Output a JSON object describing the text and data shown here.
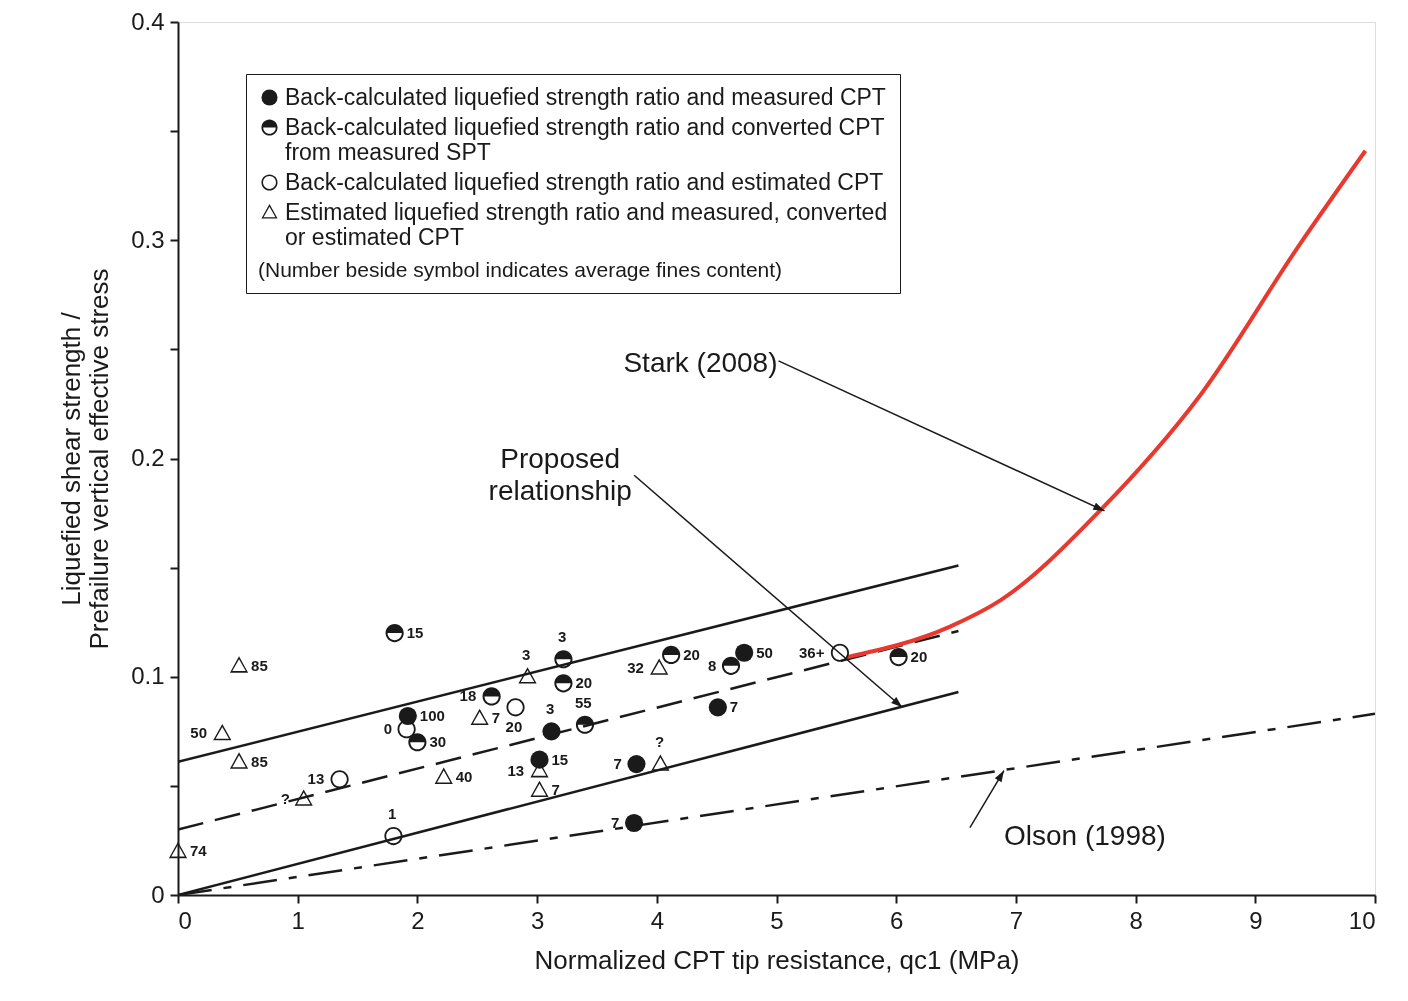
{
  "chart_data": {
    "type": "scatter",
    "xlabel": "Normalized CPT tip resistance, qc1 (MPa)",
    "ylabel": "Liquefied shear strength / Prefailure vertical effective stress",
    "legend_title": "(Number beside symbol indicates average fines content)",
    "legend": "top left",
    "xlim": [
      0,
      10
    ],
    "ylim": [
      0,
      0.4
    ],
    "xticks": [
      0,
      1,
      2,
      3,
      4,
      5,
      6,
      7,
      8,
      9,
      10
    ],
    "yticks": [
      0,
      {
        "value": 0.05,
        "label": null
      },
      0.1,
      {
        "value": 0.15,
        "label": null
      },
      0.2,
      {
        "value": 0.25,
        "label": null
      },
      0.3,
      {
        "value": 0.35,
        "label": null
      },
      0.4
    ],
    "grid": false,
    "series": [
      {
        "name": "Back-calculated liquefied strength ratio and measured CPT",
        "marker": "circle",
        "color": "#1a1a1a",
        "x": [
          1.92,
          3.12,
          3.02,
          3.83,
          4.51,
          4.73,
          3.81
        ],
        "values": [
          0.082,
          0.075,
          0.062,
          0.06,
          0.086,
          0.111,
          0.033
        ]
      },
      {
        "name": "Back-calculated liquefied strength ratio and converted CPT from measured SPT",
        "marker": "half_circle",
        "color": "#1a1a1a",
        "x": [
          1.81,
          2.0,
          2.62,
          3.22,
          3.22,
          3.4,
          4.12,
          4.62,
          6.02
        ],
        "values": [
          0.12,
          0.07,
          0.091,
          0.108,
          0.097,
          0.078,
          0.11,
          0.105,
          0.109
        ]
      },
      {
        "name": "Back-calculated liquefied strength ratio and estimated CPT",
        "marker": "open_circle",
        "color": "#1a1a1a",
        "x": [
          1.91,
          1.35,
          1.8,
          2.82,
          5.53
        ],
        "values": [
          0.076,
          0.053,
          0.027,
          0.086,
          0.111
        ]
      },
      {
        "name": "Estimated liquefied strength ratio and measured, converted or estimated CPT",
        "marker": "triangle",
        "color": "#1a1a1a",
        "x": [
          0,
          0.51,
          0.37,
          0.51,
          1.05,
          2.52,
          2.22,
          2.92,
          3.02,
          3.02,
          4.02,
          4.03
        ],
        "values": [
          0.02,
          0.105,
          0.074,
          0.061,
          0.044,
          0.081,
          0.054,
          0.1,
          0.057,
          0.048,
          0.104,
          0.06
        ]
      },
      {
        "type": "line",
        "line_style": "solid",
        "color": "#1a1a1a",
        "x": [
          0,
          6.52
        ],
        "values": [
          0.061,
          0.151
        ]
      },
      {
        "type": "line",
        "line_style": "dashed",
        "color": "#1a1a1a",
        "x": [
          0,
          6.52
        ],
        "values": [
          0.03,
          0.121
        ]
      },
      {
        "type": "line",
        "line_style": "solid",
        "color": "#1a1a1a",
        "x": [
          0,
          6.52
        ],
        "values": [
          0,
          0.093
        ]
      },
      {
        "type": "line",
        "line_style": "dashdot",
        "color": "#1a1a1a",
        "x": [
          0,
          10
        ],
        "values": [
          0,
          0.083
        ]
      },
      {
        "type": "line",
        "line_style": "solid",
        "color": "#e8392f",
        "x": [
          5.59,
          6.45,
          6.87,
          7.7,
          8.54,
          9.37,
          9.92
        ],
        "values": [
          0.109,
          0.123,
          0.135,
          0.176,
          0.229,
          0.298,
          0.341
        ]
      }
    ],
    "annotations": [
      {
        "text": "Stark (2008)",
        "x": 7.74,
        "y": 0.176
      },
      {
        "text": "Proposed relationship",
        "x": 6.05,
        "y": 0.086
      },
      {
        "text": "Olson (1998)",
        "x": 6.9,
        "y": 0.057
      },
      {
        "text": "100",
        "x": 1.92,
        "y": 0.082
      },
      {
        "text": "3",
        "x": 3.12,
        "y": 0.075
      },
      {
        "text": "15",
        "x": 3.02,
        "y": 0.062
      },
      {
        "text": "7",
        "x": 3.83,
        "y": 0.06
      },
      {
        "text": "7",
        "x": 4.51,
        "y": 0.086
      },
      {
        "text": "50",
        "x": 4.73,
        "y": 0.111
      },
      {
        "text": "7",
        "x": 3.81,
        "y": 0.033
      },
      {
        "text": "15",
        "x": 1.81,
        "y": 0.12
      },
      {
        "text": "30",
        "x": 2.0,
        "y": 0.07
      },
      {
        "text": "18",
        "x": 2.62,
        "y": 0.091
      },
      {
        "text": "3",
        "x": 3.22,
        "y": 0.108
      },
      {
        "text": "20",
        "x": 3.22,
        "y": 0.097
      },
      {
        "text": "55",
        "x": 3.4,
        "y": 0.078
      },
      {
        "text": "20",
        "x": 4.12,
        "y": 0.11
      },
      {
        "text": "8",
        "x": 4.62,
        "y": 0.105
      },
      {
        "text": "20",
        "x": 6.02,
        "y": 0.109
      },
      {
        "text": "0",
        "x": 1.91,
        "y": 0.076
      },
      {
        "text": "13",
        "x": 1.35,
        "y": 0.053
      },
      {
        "text": "1",
        "x": 1.8,
        "y": 0.027
      },
      {
        "text": "20",
        "x": 2.82,
        "y": 0.086
      },
      {
        "text": "36+",
        "x": 5.53,
        "y": 0.111
      },
      {
        "text": "74",
        "x": 0,
        "y": 0.02
      },
      {
        "text": "85",
        "x": 0.51,
        "y": 0.105
      },
      {
        "text": "50",
        "x": 0.37,
        "y": 0.074
      },
      {
        "text": "85",
        "x": 0.51,
        "y": 0.061
      },
      {
        "text": "?",
        "x": 1.05,
        "y": 0.044
      },
      {
        "text": "7",
        "x": 2.52,
        "y": 0.081
      },
      {
        "text": "40",
        "x": 2.22,
        "y": 0.054
      },
      {
        "text": "3",
        "x": 2.92,
        "y": 0.1
      },
      {
        "text": "13",
        "x": 3.02,
        "y": 0.057
      },
      {
        "text": "7",
        "x": 3.02,
        "y": 0.048
      },
      {
        "text": "32",
        "x": 4.02,
        "y": 0.104
      },
      {
        "text": "?",
        "x": 4.03,
        "y": 0.06
      }
    ]
  }
}
